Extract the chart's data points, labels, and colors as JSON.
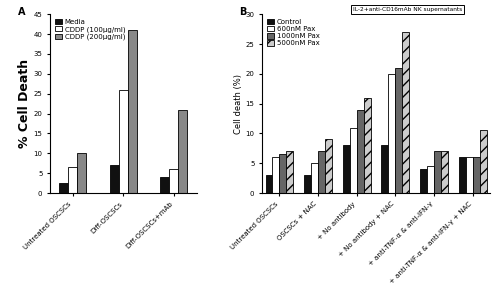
{
  "panel_A": {
    "title": "A",
    "ylabel": "% Cell Death",
    "categories": [
      "Untreated OSCSCs",
      "Diff-OSCSCs",
      "Diff-OSCSCs+mAb"
    ],
    "series": [
      {
        "label": "Media",
        "color": "#111111",
        "hatch": null,
        "values": [
          2.5,
          7.0,
          4.0
        ]
      },
      {
        "label": "CDDP (100μg/ml)",
        "color": "#ffffff",
        "hatch": null,
        "values": [
          6.5,
          26.0,
          6.0
        ]
      },
      {
        "label": "CDDP (200μg/ml)",
        "color": "#888888",
        "hatch": null,
        "values": [
          10.0,
          41.0,
          21.0
        ]
      }
    ],
    "ylim": [
      0,
      45
    ],
    "yticks": [
      0,
      5,
      10,
      15,
      20,
      25,
      30,
      35,
      40,
      45
    ]
  },
  "panel_B": {
    "title": "B",
    "ylabel": "Cell death (%)",
    "annotation": "IL-2+anti-CD16mAb NK supernatants",
    "categories": [
      "Untreated OSCSCs",
      "OSCSCs + NAC",
      "+ No antibody",
      "+ No antibody + NAC",
      "+ anti-TNF-α & anti-IFN-γ",
      "+ anti-TNF-α & anti-IFN-γ + NAC"
    ],
    "series": [
      {
        "label": "Control",
        "color": "#111111",
        "hatch": null,
        "values": [
          3.0,
          3.0,
          8.0,
          8.0,
          4.0,
          6.0
        ]
      },
      {
        "label": "600nM Pax",
        "color": "#ffffff",
        "hatch": null,
        "values": [
          6.0,
          5.0,
          11.0,
          20.0,
          4.5,
          6.0
        ]
      },
      {
        "label": "1000nM Pax",
        "color": "#666666",
        "hatch": null,
        "values": [
          6.5,
          7.0,
          14.0,
          21.0,
          7.0,
          6.0
        ]
      },
      {
        "label": "5000nM Pax",
        "color": "#cccccc",
        "hatch": "///",
        "values": [
          7.0,
          9.0,
          16.0,
          27.0,
          7.0,
          10.5
        ]
      }
    ],
    "ylim": [
      0,
      30
    ],
    "yticks": [
      0,
      5,
      10,
      15,
      20,
      25,
      30
    ]
  },
  "bar_width": 0.18,
  "edge_color": "#000000",
  "background_color": "#ffffff",
  "tick_fontsize": 5,
  "label_fontsize": 6,
  "legend_fontsize": 5.0,
  "title_fontsize": 7,
  "ylabel_A_fontsize": 9
}
